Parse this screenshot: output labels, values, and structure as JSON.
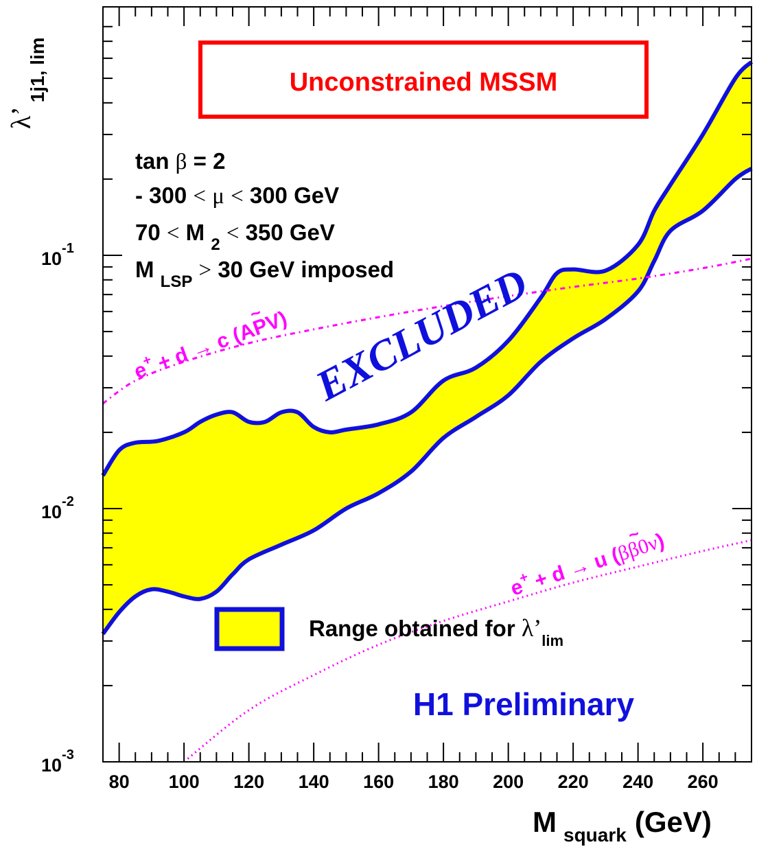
{
  "chart_data": {
    "type": "line",
    "title": "Unconstrained MSSM",
    "xlabel": {
      "main": "M",
      "sub": "squark",
      "unit": "(GeV)"
    },
    "ylabel": {
      "main": "λ’",
      "sub": "1j1, lim"
    },
    "xlim": [
      75,
      275
    ],
    "ylim": [
      0.001,
      0.8
    ],
    "y_scale": "log",
    "x_ticks": [
      80,
      100,
      120,
      140,
      160,
      180,
      200,
      220,
      240,
      260
    ],
    "y_ticks": [
      {
        "base": "10",
        "exp": "-1",
        "value": 0.1
      },
      {
        "base": "10",
        "exp": "-2",
        "value": 0.01
      },
      {
        "base": "10",
        "exp": "-3",
        "value": 0.001
      }
    ],
    "parameters": [
      {
        "id": "tanb",
        "parts": [
          "tan ",
          "β",
          " = 2"
        ]
      },
      {
        "id": "mu",
        "parts": [
          "- 300 ",
          "<",
          " ",
          "μ",
          " ",
          "<",
          " 300 GeV"
        ]
      },
      {
        "id": "m2",
        "parts": [
          "70 ",
          "<",
          " M ",
          "2",
          " ",
          "<",
          " 350 GeV"
        ]
      },
      {
        "id": "mlsp",
        "parts": [
          "M ",
          "LSP",
          " ",
          ">",
          " 30 GeV imposed"
        ]
      }
    ],
    "excluded_label": "EXCLUDED",
    "footer_label": "H1 Preliminary",
    "legend": {
      "position": "lower-center",
      "text_main": "Range obtained for ",
      "lambda": "λ’",
      "text_sub": "lim"
    },
    "band": {
      "name": "Range obtained for λ’lim",
      "fill": "#ffff00",
      "stroke": "#1010dd",
      "upper": [
        [
          75,
          0.0135
        ],
        [
          80,
          0.017
        ],
        [
          85,
          0.0182
        ],
        [
          92,
          0.0185
        ],
        [
          100,
          0.02
        ],
        [
          105,
          0.022
        ],
        [
          110,
          0.0235
        ],
        [
          115,
          0.024
        ],
        [
          120,
          0.022
        ],
        [
          125,
          0.022
        ],
        [
          130,
          0.024
        ],
        [
          135,
          0.024
        ],
        [
          140,
          0.021
        ],
        [
          145,
          0.02
        ],
        [
          150,
          0.0205
        ],
        [
          160,
          0.0215
        ],
        [
          170,
          0.024
        ],
        [
          180,
          0.032
        ],
        [
          190,
          0.036
        ],
        [
          200,
          0.046
        ],
        [
          210,
          0.068
        ],
        [
          215,
          0.085
        ],
        [
          220,
          0.088
        ],
        [
          230,
          0.087
        ],
        [
          240,
          0.11
        ],
        [
          245,
          0.15
        ],
        [
          250,
          0.19
        ],
        [
          260,
          0.3
        ],
        [
          270,
          0.5
        ],
        [
          275,
          0.58
        ]
      ],
      "lower": [
        [
          75,
          0.0032
        ],
        [
          80,
          0.0039
        ],
        [
          85,
          0.0045
        ],
        [
          90,
          0.0048
        ],
        [
          95,
          0.0047
        ],
        [
          100,
          0.0045
        ],
        [
          105,
          0.0044
        ],
        [
          110,
          0.0047
        ],
        [
          115,
          0.0055
        ],
        [
          120,
          0.0063
        ],
        [
          130,
          0.0072
        ],
        [
          140,
          0.0082
        ],
        [
          150,
          0.01
        ],
        [
          160,
          0.0115
        ],
        [
          170,
          0.014
        ],
        [
          180,
          0.019
        ],
        [
          190,
          0.023
        ],
        [
          200,
          0.028
        ],
        [
          210,
          0.038
        ],
        [
          220,
          0.047
        ],
        [
          230,
          0.056
        ],
        [
          240,
          0.072
        ],
        [
          245,
          0.095
        ],
        [
          250,
          0.125
        ],
        [
          260,
          0.15
        ],
        [
          270,
          0.2
        ],
        [
          275,
          0.22
        ]
      ]
    },
    "limits": [
      {
        "id": "apv",
        "label_pre": "e",
        "label_sup": "+",
        "label_mid": " + d ",
        "arrow": "→",
        "squark": "c",
        "tilde": "~",
        "label_post": " (APV)",
        "color": "#ff00ff",
        "style": "dash-dot",
        "points": [
          [
            75,
            0.026
          ],
          [
            85,
            0.032
          ],
          [
            100,
            0.038
          ],
          [
            120,
            0.045
          ],
          [
            140,
            0.051
          ],
          [
            160,
            0.057
          ],
          [
            180,
            0.063
          ],
          [
            200,
            0.069
          ],
          [
            220,
            0.075
          ],
          [
            240,
            0.081
          ],
          [
            260,
            0.089
          ],
          [
            275,
            0.097
          ]
        ]
      },
      {
        "id": "bb0v",
        "label_pre": "e",
        "label_sup": "+",
        "label_mid": " + d ",
        "arrow": "→",
        "squark": "u",
        "tilde": "~",
        "label_post": "  (",
        "label_greek": "ββ0ν",
        "label_end": ")",
        "color": "#ff00ff",
        "style": "dotted",
        "points": [
          [
            100,
            0.001
          ],
          [
            120,
            0.0016
          ],
          [
            140,
            0.0022
          ],
          [
            160,
            0.0029
          ],
          [
            180,
            0.0036
          ],
          [
            200,
            0.0043
          ],
          [
            220,
            0.0051
          ],
          [
            240,
            0.0059
          ],
          [
            260,
            0.0068
          ],
          [
            275,
            0.0075
          ]
        ]
      }
    ],
    "colors": {
      "axis": "#000000",
      "band_stroke": "#1010dd",
      "band_fill": "#ffff00",
      "limit": "#ff00ff",
      "title": "#ff0000",
      "excluded": "#1010dd",
      "preliminary": "#1010dd"
    }
  }
}
